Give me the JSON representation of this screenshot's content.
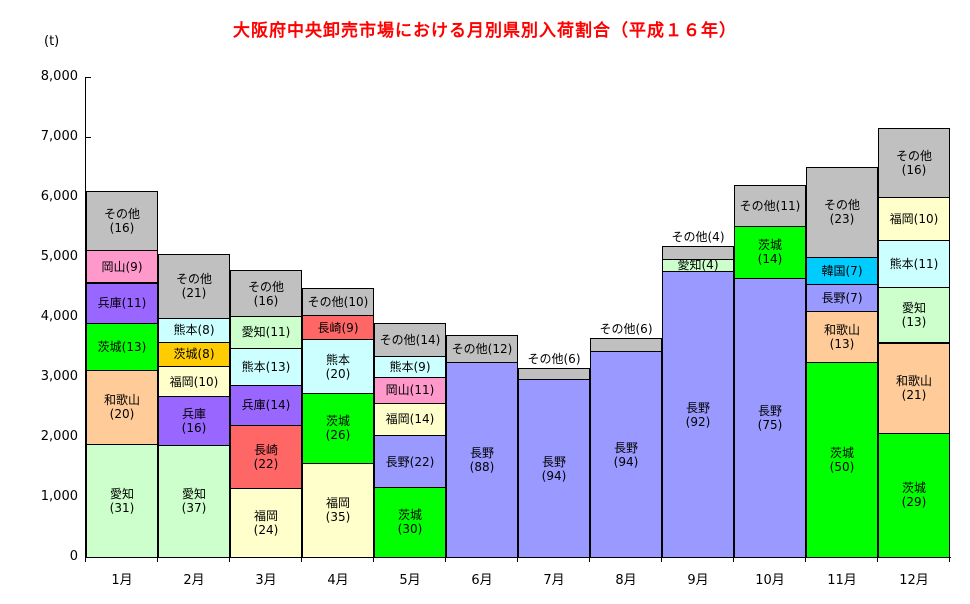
{
  "chart_data": {
    "type": "bar",
    "subtype": "stacked",
    "title": "大阪府中央卸売市場における月別県別入荷割合（平成１６年）",
    "title_color": "#FF0000",
    "unit_label": "(t)",
    "xlabel": "",
    "ylabel": "",
    "ylim": [
      0,
      8000
    ],
    "ytick_step": 1000,
    "ytick_labels": [
      "0",
      "1,000",
      "2,000",
      "3,000",
      "4,000",
      "5,000",
      "6,000",
      "7,000",
      "8,000"
    ],
    "categories": [
      "1月",
      "2月",
      "3月",
      "4月",
      "5月",
      "6月",
      "7月",
      "8月",
      "9月",
      "10月",
      "11月",
      "12月"
    ],
    "grid": false,
    "legend_position": "none",
    "bar_border_color": "#000000",
    "months": [
      {
        "category": "1月",
        "total_t": 6100,
        "segments": [
          {
            "name": "愛知",
            "share_pct": 31,
            "color": "#CCFFCC",
            "label_lines": [
              "愛知",
              "(31)"
            ],
            "label_outside": false
          },
          {
            "name": "和歌山",
            "share_pct": 20,
            "color": "#FFCC99",
            "label_lines": [
              "和歌山",
              "(20)"
            ],
            "label_outside": false
          },
          {
            "name": "茨城",
            "share_pct": 13,
            "color": "#00FF00",
            "label_lines": [
              "茨城(13)"
            ],
            "label_outside": false
          },
          {
            "name": "兵庫",
            "share_pct": 11,
            "color": "#9966FF",
            "label_lines": [
              "兵庫(11)"
            ],
            "label_outside": false
          },
          {
            "name": "岡山",
            "share_pct": 9,
            "color": "#FF99CC",
            "label_lines": [
              "岡山(9)"
            ],
            "label_outside": false
          },
          {
            "name": "その他",
            "share_pct": 16,
            "color": "#C0C0C0",
            "label_lines": [
              "その他",
              "(16)"
            ],
            "label_outside": false
          }
        ]
      },
      {
        "category": "2月",
        "total_t": 5050,
        "segments": [
          {
            "name": "愛知",
            "share_pct": 37,
            "color": "#CCFFCC",
            "label_lines": [
              "愛知",
              "(37)"
            ],
            "label_outside": false
          },
          {
            "name": "兵庫",
            "share_pct": 16,
            "color": "#9966FF",
            "label_lines": [
              "兵庫",
              "(16)"
            ],
            "label_outside": false
          },
          {
            "name": "福岡",
            "share_pct": 10,
            "color": "#FFFFCC",
            "label_lines": [
              "福岡(10)"
            ],
            "label_outside": false
          },
          {
            "name": "茨城",
            "share_pct": 8,
            "color": "#FFCC00",
            "label_lines": [
              "茨城(8)"
            ],
            "label_outside": false
          },
          {
            "name": "熊本",
            "share_pct": 8,
            "color": "#CCFFFF",
            "label_lines": [
              "熊本(8)"
            ],
            "label_outside": false
          },
          {
            "name": "その他",
            "share_pct": 21,
            "color": "#C0C0C0",
            "label_lines": [
              "その他",
              "(21)"
            ],
            "label_outside": false
          }
        ]
      },
      {
        "category": "3月",
        "total_t": 4780,
        "segments": [
          {
            "name": "福岡",
            "share_pct": 24,
            "color": "#FFFFCC",
            "label_lines": [
              "福岡",
              "(24)"
            ],
            "label_outside": false
          },
          {
            "name": "長崎",
            "share_pct": 22,
            "color": "#FF6666",
            "label_lines": [
              "長崎",
              "(22)"
            ],
            "label_outside": false
          },
          {
            "name": "兵庫",
            "share_pct": 14,
            "color": "#9966FF",
            "label_lines": [
              "兵庫(14)"
            ],
            "label_outside": false
          },
          {
            "name": "熊本",
            "share_pct": 13,
            "color": "#CCFFFF",
            "label_lines": [
              "熊本(13)"
            ],
            "label_outside": false
          },
          {
            "name": "愛知",
            "share_pct": 11,
            "color": "#CCFFCC",
            "label_lines": [
              "愛知(11)"
            ],
            "label_outside": false
          },
          {
            "name": "その他",
            "share_pct": 16,
            "color": "#C0C0C0",
            "label_lines": [
              "その他",
              "(16)"
            ],
            "label_outside": false
          }
        ]
      },
      {
        "category": "4月",
        "total_t": 4480,
        "segments": [
          {
            "name": "福岡",
            "share_pct": 35,
            "color": "#FFFFCC",
            "label_lines": [
              "福岡",
              "(35)"
            ],
            "label_outside": false
          },
          {
            "name": "茨城",
            "share_pct": 26,
            "color": "#00FF00",
            "label_lines": [
              "茨城",
              "(26)"
            ],
            "label_outside": false
          },
          {
            "name": "熊本",
            "share_pct": 20,
            "color": "#CCFFFF",
            "label_lines": [
              "熊本",
              "(20)"
            ],
            "label_outside": false
          },
          {
            "name": "長崎",
            "share_pct": 9,
            "color": "#FF6666",
            "label_lines": [
              "長崎(9)"
            ],
            "label_outside": false
          },
          {
            "name": "その他",
            "share_pct": 10,
            "color": "#C0C0C0",
            "label_lines": [
              "その他(10)"
            ],
            "label_outside": false
          }
        ]
      },
      {
        "category": "5月",
        "total_t": 3900,
        "segments": [
          {
            "name": "茨城",
            "share_pct": 30,
            "color": "#00FF00",
            "label_lines": [
              "茨城",
              "(30)"
            ],
            "label_outside": false
          },
          {
            "name": "長野",
            "share_pct": 22,
            "color": "#9999FF",
            "label_lines": [
              "長野(22)"
            ],
            "label_outside": false
          },
          {
            "name": "福岡",
            "share_pct": 14,
            "color": "#FFFFCC",
            "label_lines": [
              "福岡(14)"
            ],
            "label_outside": false
          },
          {
            "name": "岡山",
            "share_pct": 11,
            "color": "#FF99CC",
            "label_lines": [
              "岡山(11)"
            ],
            "label_outside": false
          },
          {
            "name": "熊本",
            "share_pct": 9,
            "color": "#CCFFFF",
            "label_lines": [
              "熊本(9)"
            ],
            "label_outside": false
          },
          {
            "name": "その他",
            "share_pct": 14,
            "color": "#C0C0C0",
            "label_lines": [
              "その他(14)"
            ],
            "label_outside": false
          }
        ]
      },
      {
        "category": "6月",
        "total_t": 3700,
        "segments": [
          {
            "name": "長野",
            "share_pct": 88,
            "color": "#9999FF",
            "label_lines": [
              "長野",
              "(88)"
            ],
            "label_outside": false
          },
          {
            "name": "その他",
            "share_pct": 12,
            "color": "#C0C0C0",
            "label_lines": [
              "その他(12)"
            ],
            "label_outside": false
          }
        ]
      },
      {
        "category": "7月",
        "total_t": 3150,
        "segments": [
          {
            "name": "長野",
            "share_pct": 94,
            "color": "#9999FF",
            "label_lines": [
              "長野",
              "(94)"
            ],
            "label_outside": false
          },
          {
            "name": "その他",
            "share_pct": 6,
            "color": "#C0C0C0",
            "label_lines": [
              "その他(6)"
            ],
            "label_outside": true
          }
        ]
      },
      {
        "category": "8月",
        "total_t": 3650,
        "segments": [
          {
            "name": "長野",
            "share_pct": 94,
            "color": "#9999FF",
            "label_lines": [
              "長野",
              "(94)"
            ],
            "label_outside": false
          },
          {
            "name": "その他",
            "share_pct": 6,
            "color": "#C0C0C0",
            "label_lines": [
              "その他(6)"
            ],
            "label_outside": true
          }
        ]
      },
      {
        "category": "9月",
        "total_t": 5180,
        "segments": [
          {
            "name": "長野",
            "share_pct": 92,
            "color": "#9999FF",
            "label_lines": [
              "長野",
              "(92)"
            ],
            "label_outside": false
          },
          {
            "name": "愛知",
            "share_pct": 4,
            "color": "#CCFFCC",
            "label_lines": [
              "愛知(4)"
            ],
            "label_outside": false
          },
          {
            "name": "その他",
            "share_pct": 4,
            "color": "#C0C0C0",
            "label_lines": [
              "その他(4)"
            ],
            "label_outside": true
          }
        ]
      },
      {
        "category": "10月",
        "total_t": 6200,
        "segments": [
          {
            "name": "長野",
            "share_pct": 75,
            "color": "#9999FF",
            "label_lines": [
              "長野",
              "(75)"
            ],
            "label_outside": false
          },
          {
            "name": "茨城",
            "share_pct": 14,
            "color": "#00FF00",
            "label_lines": [
              "茨城",
              "(14)"
            ],
            "label_outside": false
          },
          {
            "name": "その他",
            "share_pct": 11,
            "color": "#C0C0C0",
            "label_lines": [
              "その他(11)"
            ],
            "label_outside": false
          }
        ]
      },
      {
        "category": "11月",
        "total_t": 6500,
        "segments": [
          {
            "name": "茨城",
            "share_pct": 50,
            "color": "#00FF00",
            "label_lines": [
              "茨城",
              "(50)"
            ],
            "label_outside": false
          },
          {
            "name": "和歌山",
            "share_pct": 13,
            "color": "#FFCC99",
            "label_lines": [
              "和歌山",
              "(13)"
            ],
            "label_outside": false
          },
          {
            "name": "長野",
            "share_pct": 7,
            "color": "#9999FF",
            "label_lines": [
              "長野(7)"
            ],
            "label_outside": false
          },
          {
            "name": "韓国",
            "share_pct": 7,
            "color": "#00CCFF",
            "label_lines": [
              "韓国(7)"
            ],
            "label_outside": false
          },
          {
            "name": "その他",
            "share_pct": 23,
            "color": "#C0C0C0",
            "label_lines": [
              "その他",
              "(23)"
            ],
            "label_outside": false
          }
        ]
      },
      {
        "category": "12月",
        "total_t": 7150,
        "segments": [
          {
            "name": "茨城",
            "share_pct": 29,
            "color": "#00FF00",
            "label_lines": [
              "茨城",
              "(29)"
            ],
            "label_outside": false
          },
          {
            "name": "和歌山",
            "share_pct": 21,
            "color": "#FFCC99",
            "label_lines": [
              "和歌山",
              "(21)"
            ],
            "label_outside": false
          },
          {
            "name": "愛知",
            "share_pct": 13,
            "color": "#CCFFCC",
            "label_lines": [
              "愛知",
              "(13)"
            ],
            "label_outside": false
          },
          {
            "name": "熊本",
            "share_pct": 11,
            "color": "#CCFFFF",
            "label_lines": [
              "熊本(11)"
            ],
            "label_outside": false
          },
          {
            "name": "福岡",
            "share_pct": 10,
            "color": "#FFFFCC",
            "label_lines": [
              "福岡(10)"
            ],
            "label_outside": false
          },
          {
            "name": "その他",
            "share_pct": 16,
            "color": "#C0C0C0",
            "label_lines": [
              "その他",
              "(16)"
            ],
            "label_outside": false
          }
        ]
      }
    ]
  }
}
